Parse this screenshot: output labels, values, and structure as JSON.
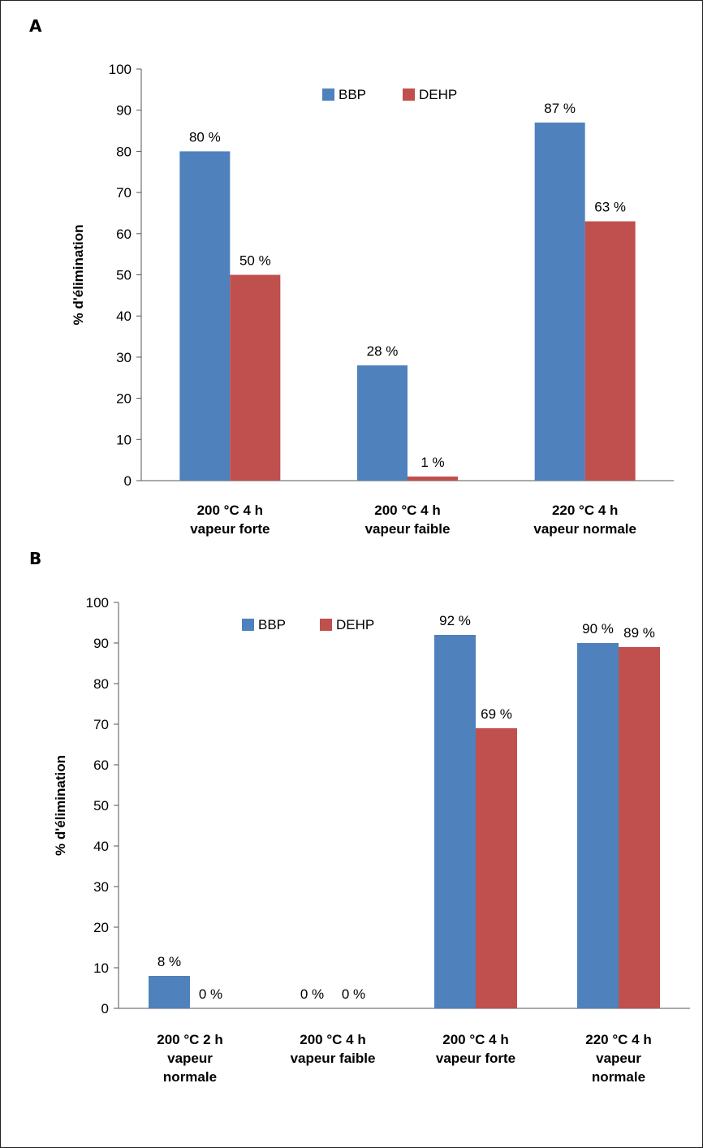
{
  "panels": [
    "A",
    "B"
  ],
  "chart_data": [
    {
      "type": "bar",
      "panel_label": "A",
      "categories": [
        [
          "200 °C 4 h",
          "vapeur forte"
        ],
        [
          "200 °C 4 h",
          "vapeur faible"
        ],
        [
          "220 °C 4 h",
          "vapeur normale"
        ]
      ],
      "series": [
        {
          "name": "BBP",
          "color": "#4f81bd",
          "values": [
            80,
            28,
            87
          ],
          "labels": [
            "80 %",
            "28 %",
            "87 %"
          ]
        },
        {
          "name": "DEHP",
          "color": "#c0504d",
          "values": [
            50,
            1,
            63
          ],
          "labels": [
            "50 %",
            "1 %",
            "63 %"
          ]
        }
      ],
      "ylabel": "% d'élimination",
      "xlabel": "",
      "ylim": [
        0,
        100
      ],
      "yticks": [
        0,
        10,
        20,
        30,
        40,
        50,
        60,
        70,
        80,
        90,
        100
      ],
      "legend": "top-center",
      "grid": false
    },
    {
      "type": "bar",
      "panel_label": "B",
      "categories": [
        [
          "200 °C 2 h",
          "vapeur",
          "normale"
        ],
        [
          "200 °C 4 h",
          "vapeur faible"
        ],
        [
          "200 °C 4 h",
          "vapeur forte"
        ],
        [
          "220 °C 4 h",
          "vapeur",
          "normale"
        ]
      ],
      "series": [
        {
          "name": "BBP",
          "color": "#4f81bd",
          "values": [
            8,
            0,
            92,
            90
          ],
          "labels": [
            "8 %",
            "0 %",
            "92 %",
            "90 %"
          ]
        },
        {
          "name": "DEHP",
          "color": "#c0504d",
          "values": [
            0,
            0,
            69,
            89
          ],
          "labels": [
            "0 %",
            "0 %",
            "69 %",
            "89 %"
          ]
        }
      ],
      "ylabel": "% d'élimination",
      "xlabel": "",
      "ylim": [
        0,
        100
      ],
      "yticks": [
        0,
        10,
        20,
        30,
        40,
        50,
        60,
        70,
        80,
        90,
        100
      ],
      "legend": "top-center",
      "grid": false
    }
  ]
}
